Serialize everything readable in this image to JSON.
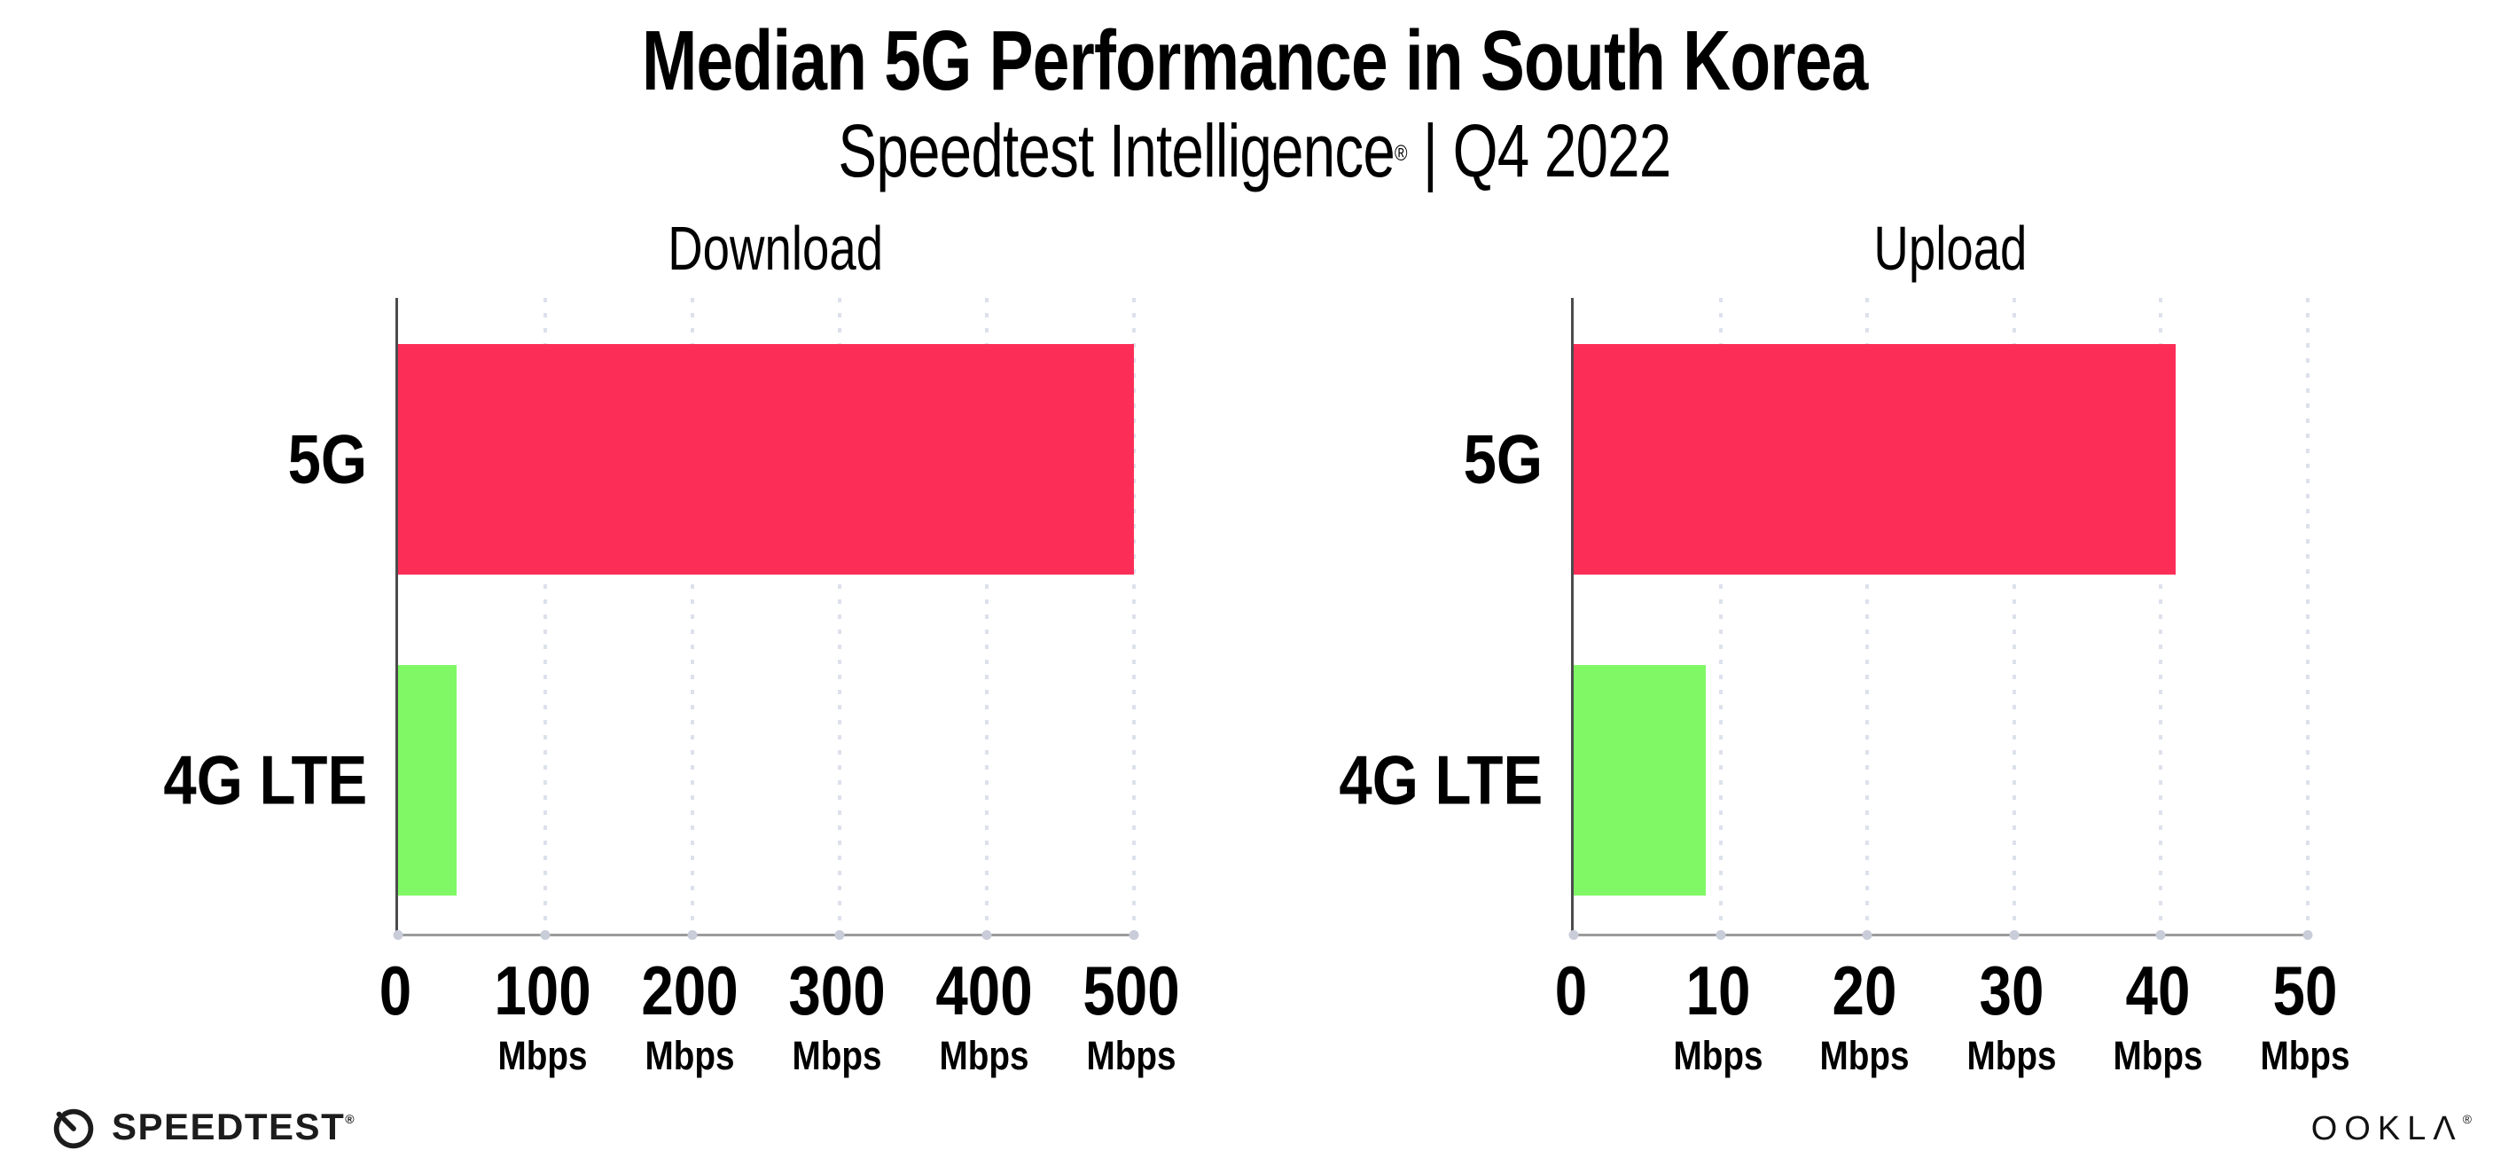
{
  "header": {
    "title": "Median 5G Performance in South Korea",
    "subtitle_brand": "Speedtest Intelligence",
    "subtitle_reg": "®",
    "subtitle_rest": " | Q4 2022"
  },
  "colors": {
    "bar_5g": "#fc2e58",
    "bar_4g_lte": "#80f866",
    "gridline": "#dde1ec",
    "axis_vertical": "#4c4c4c",
    "axis_horizontal": "#9b9b9b",
    "tick_dot": "#c9cdd9",
    "text": "#000000"
  },
  "chart_data": [
    {
      "type": "bar",
      "orientation": "horizontal",
      "title": "Download",
      "categories": [
        "5G",
        "4G LTE"
      ],
      "values": [
        500,
        40
      ],
      "unit": "Mbps",
      "xlim": [
        0,
        500
      ],
      "xticks": [
        0,
        100,
        200,
        300,
        400,
        500
      ],
      "bar_colors": [
        "#fc2e58",
        "#80f866"
      ],
      "grid": "dotted-vertical",
      "legend": "none"
    },
    {
      "type": "bar",
      "orientation": "horizontal",
      "title": "Upload",
      "categories": [
        "5G",
        "4G LTE"
      ],
      "values": [
        41,
        9
      ],
      "unit": "Mbps",
      "xlim": [
        0,
        50
      ],
      "xticks": [
        0,
        10,
        20,
        30,
        40,
        50
      ],
      "bar_colors": [
        "#fc2e58",
        "#80f866"
      ],
      "grid": "dotted-vertical",
      "legend": "none"
    }
  ],
  "footer": {
    "speedtest_label": "SPEEDTEST",
    "speedtest_mark": "®",
    "ookla_label": "OOKLΛ",
    "ookla_mark": "®"
  }
}
